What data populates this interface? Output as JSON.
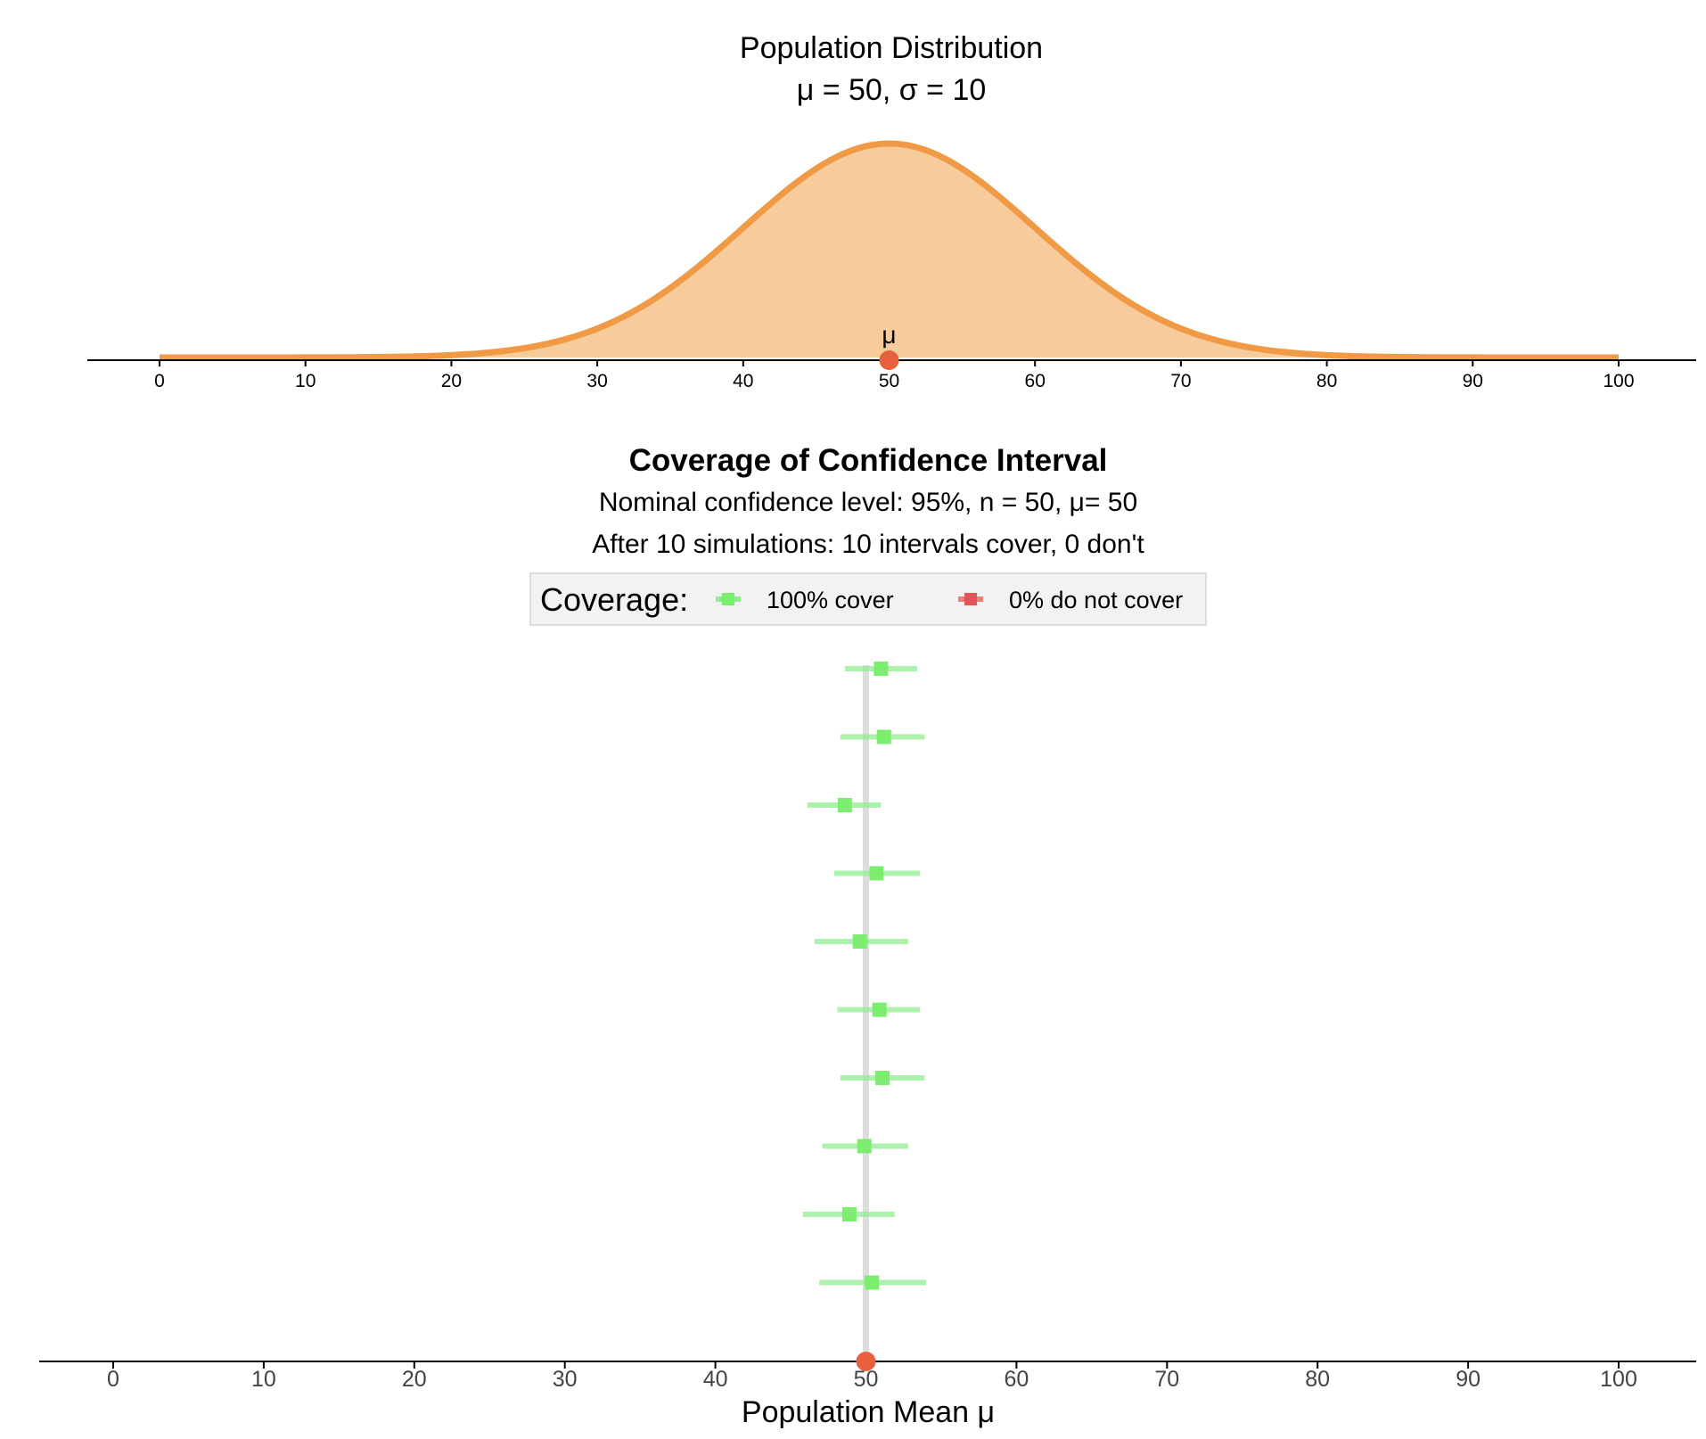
{
  "chart_data": [
    {
      "type": "area",
      "chart_id": "population",
      "title": "Population Distribution",
      "subtitle": "μ = 50, σ = 10",
      "distribution": "normal",
      "mean": 50,
      "sd": 10,
      "xlim": [
        0,
        100
      ],
      "x_ticks": [
        0,
        10,
        20,
        30,
        40,
        50,
        60,
        70,
        80,
        90,
        100
      ],
      "mean_marker_label": "μ",
      "mean_marker_value": 50,
      "fill_color": "#f7cb9c",
      "line_color": "#f09a45",
      "marker_color": "#e8613c"
    },
    {
      "type": "scatter",
      "chart_id": "coverage",
      "title": "Coverage of Confidence Interval",
      "subtitle_line1": "Nominal confidence level: 95%, n = 50, μ= 50",
      "subtitle_line2": "After 10 simulations: 10 intervals cover, 0 don't",
      "xlabel": "Population Mean μ",
      "xlim": [
        0,
        100
      ],
      "x_ticks": [
        0,
        10,
        20,
        30,
        40,
        50,
        60,
        70,
        80,
        90,
        100
      ],
      "reference_line": 50,
      "legend": {
        "title": "Coverage:",
        "entries": [
          {
            "label": "100% cover",
            "color": "#90ee90"
          },
          {
            "label": "0% do not cover",
            "color": "#e88080"
          }
        ]
      },
      "series": [
        {
          "name": "cover",
          "color": "#90ee90",
          "point_color": "#7ded70"
        },
        {
          "name": "do not cover",
          "color": "#e88080",
          "point_color": "#e05555"
        }
      ],
      "intervals": [
        {
          "mean": 51.0,
          "lower": 48.6,
          "upper": 53.4,
          "covers": true
        },
        {
          "mean": 51.2,
          "lower": 48.3,
          "upper": 53.9,
          "covers": true
        },
        {
          "mean": 48.6,
          "lower": 46.1,
          "upper": 51.0,
          "covers": true
        },
        {
          "mean": 50.7,
          "lower": 47.9,
          "upper": 53.6,
          "covers": true
        },
        {
          "mean": 49.6,
          "lower": 46.6,
          "upper": 52.8,
          "covers": true
        },
        {
          "mean": 50.9,
          "lower": 48.1,
          "upper": 53.6,
          "covers": true
        },
        {
          "mean": 51.1,
          "lower": 48.3,
          "upper": 53.9,
          "covers": true
        },
        {
          "mean": 49.9,
          "lower": 47.1,
          "upper": 52.8,
          "covers": true
        },
        {
          "mean": 48.9,
          "lower": 45.8,
          "upper": 51.9,
          "covers": true
        },
        {
          "mean": 50.4,
          "lower": 46.9,
          "upper": 54.0,
          "covers": true
        }
      ],
      "mean_marker_color": "#e8613c",
      "reference_line_color": "#dddddd"
    }
  ]
}
